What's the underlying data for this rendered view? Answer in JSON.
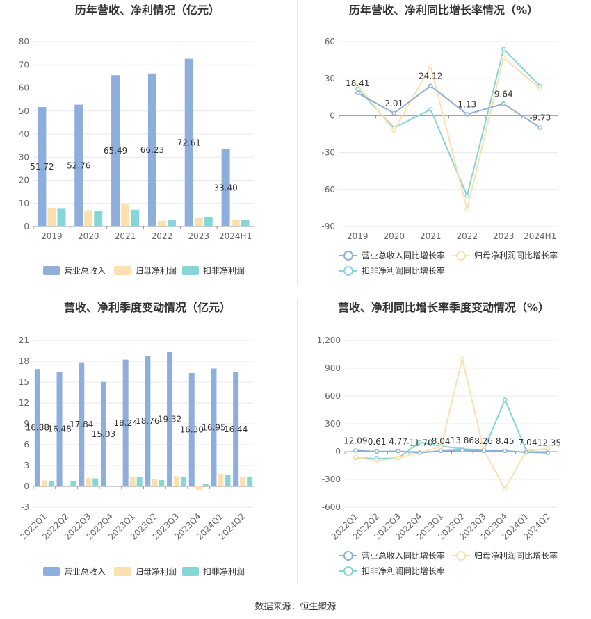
{
  "source_note": "数据来源：恒生聚源",
  "colors": {
    "revenue": "#8eaedc",
    "net_profit": "#fde0b0",
    "deducted_profit": "#85d6d6",
    "grid": "#e8e8e8",
    "axis_text": "#666666",
    "title": "#333333"
  },
  "chart_data": [
    {
      "id": "annual-bar",
      "type": "bar",
      "title": "历年营收、净利情况（亿元）",
      "categories": [
        "2019",
        "2020",
        "2021",
        "2022",
        "2023",
        "2024H1"
      ],
      "series": [
        {
          "name": "营业总收入",
          "values": [
            51.72,
            52.76,
            65.49,
            66.23,
            72.61,
            33.4
          ],
          "labels": [
            "51.72",
            "52.76",
            "65.49",
            "66.23",
            "72.61",
            "33.40"
          ]
        },
        {
          "name": "归母净利润",
          "values": [
            8.1,
            7.1,
            9.9,
            2.5,
            3.7,
            3.1
          ]
        },
        {
          "name": "扣非净利润",
          "values": [
            7.7,
            6.9,
            7.3,
            2.7,
            4.2,
            3.0
          ]
        }
      ],
      "yticks": [
        "80",
        "70",
        "60",
        "50",
        "40",
        "30",
        "20",
        "10",
        "0"
      ],
      "ylim": [
        0,
        80
      ],
      "grid": true,
      "legend": "bottom"
    },
    {
      "id": "annual-line",
      "type": "line",
      "title": "历年营收、净利同比增长率情况（%）",
      "categories": [
        "2019",
        "2020",
        "2021",
        "2022",
        "2023",
        "2024H1"
      ],
      "series": [
        {
          "name": "营业总收入同比增长率",
          "values": [
            18.41,
            2.01,
            24.12,
            1.13,
            9.64,
            -9.73
          ],
          "labels": [
            "18.41",
            "2.01",
            "24.12",
            "1.13",
            "9.64",
            "-9.73"
          ]
        },
        {
          "name": "归母净利润同比增长率",
          "values": [
            25,
            -12,
            40,
            -76,
            47,
            22
          ]
        },
        {
          "name": "扣非净利润同比增长率",
          "values": [
            22,
            -10,
            5,
            -65,
            54,
            24
          ]
        }
      ],
      "yticks": [
        "60",
        "30",
        "0",
        "-30",
        "-60",
        "-90"
      ],
      "ylim": [
        -90,
        60
      ],
      "grid": true,
      "legend": "bottom"
    },
    {
      "id": "quarter-bar",
      "type": "bar",
      "title": "营收、净利季度变动情况（亿元）",
      "categories": [
        "2022Q1",
        "2022Q2",
        "2022Q3",
        "2022Q4",
        "2023Q1",
        "2023Q2",
        "2023Q3",
        "2023Q4",
        "2024Q1",
        "2024Q2"
      ],
      "series": [
        {
          "name": "营业总收入",
          "values": [
            16.88,
            16.48,
            17.84,
            15.03,
            18.24,
            18.76,
            19.32,
            16.3,
            16.95,
            16.44
          ],
          "labels": [
            "16.88",
            "16.48",
            "17.84",
            "15.03",
            "18.24",
            "18.76",
            "19.32",
            "16.30",
            "16.95",
            "16.44"
          ]
        },
        {
          "name": "归母净利润",
          "values": [
            0.85,
            0.1,
            1.2,
            0.1,
            1.4,
            1.0,
            1.45,
            -0.5,
            1.7,
            1.35
          ]
        },
        {
          "name": "扣非净利润",
          "values": [
            0.8,
            0.7,
            1.15,
            0.05,
            1.35,
            0.9,
            1.4,
            0.35,
            1.6,
            1.3
          ]
        }
      ],
      "yticks": [
        "21",
        "18",
        "15",
        "12",
        "9",
        "6",
        "3",
        "0",
        "-3"
      ],
      "ylim": [
        -3,
        21
      ],
      "grid": true,
      "legend": "bottom"
    },
    {
      "id": "quarter-line",
      "type": "line",
      "title": "营收、净利同比增长率季度变动情况（%）",
      "categories": [
        "2022Q1",
        "2022Q2",
        "2022Q3",
        "2022Q4",
        "2023Q1",
        "2023Q2",
        "2023Q3",
        "2023Q4",
        "2024Q1",
        "2024Q2"
      ],
      "series": [
        {
          "name": "营业总收入同比增长率",
          "values": [
            12.09,
            0.61,
            4.77,
            -11.7,
            8.04,
            13.86,
            8.26,
            8.45,
            -7.04,
            -12.35
          ],
          "labels": [
            "12.09",
            "0.61",
            "4.77",
            "-11.70",
            "8.04",
            "13.86",
            "8.26",
            "8.45",
            "-7.04",
            "-12.35"
          ]
        },
        {
          "name": "归母净利润同比增长率",
          "values": [
            -60,
            -95,
            -70,
            -10,
            50,
            1000,
            20,
            -400,
            5,
            35
          ]
        },
        {
          "name": "扣非净利润同比增长率",
          "values": [
            -65,
            -75,
            -70,
            100,
            60,
            30,
            15,
            560,
            10,
            30
          ]
        }
      ],
      "yticks": [
        "1,200",
        "900",
        "600",
        "300",
        "0",
        "-300",
        "-600"
      ],
      "ylim": [
        -600,
        1200
      ],
      "grid": true,
      "legend": "bottom"
    }
  ]
}
